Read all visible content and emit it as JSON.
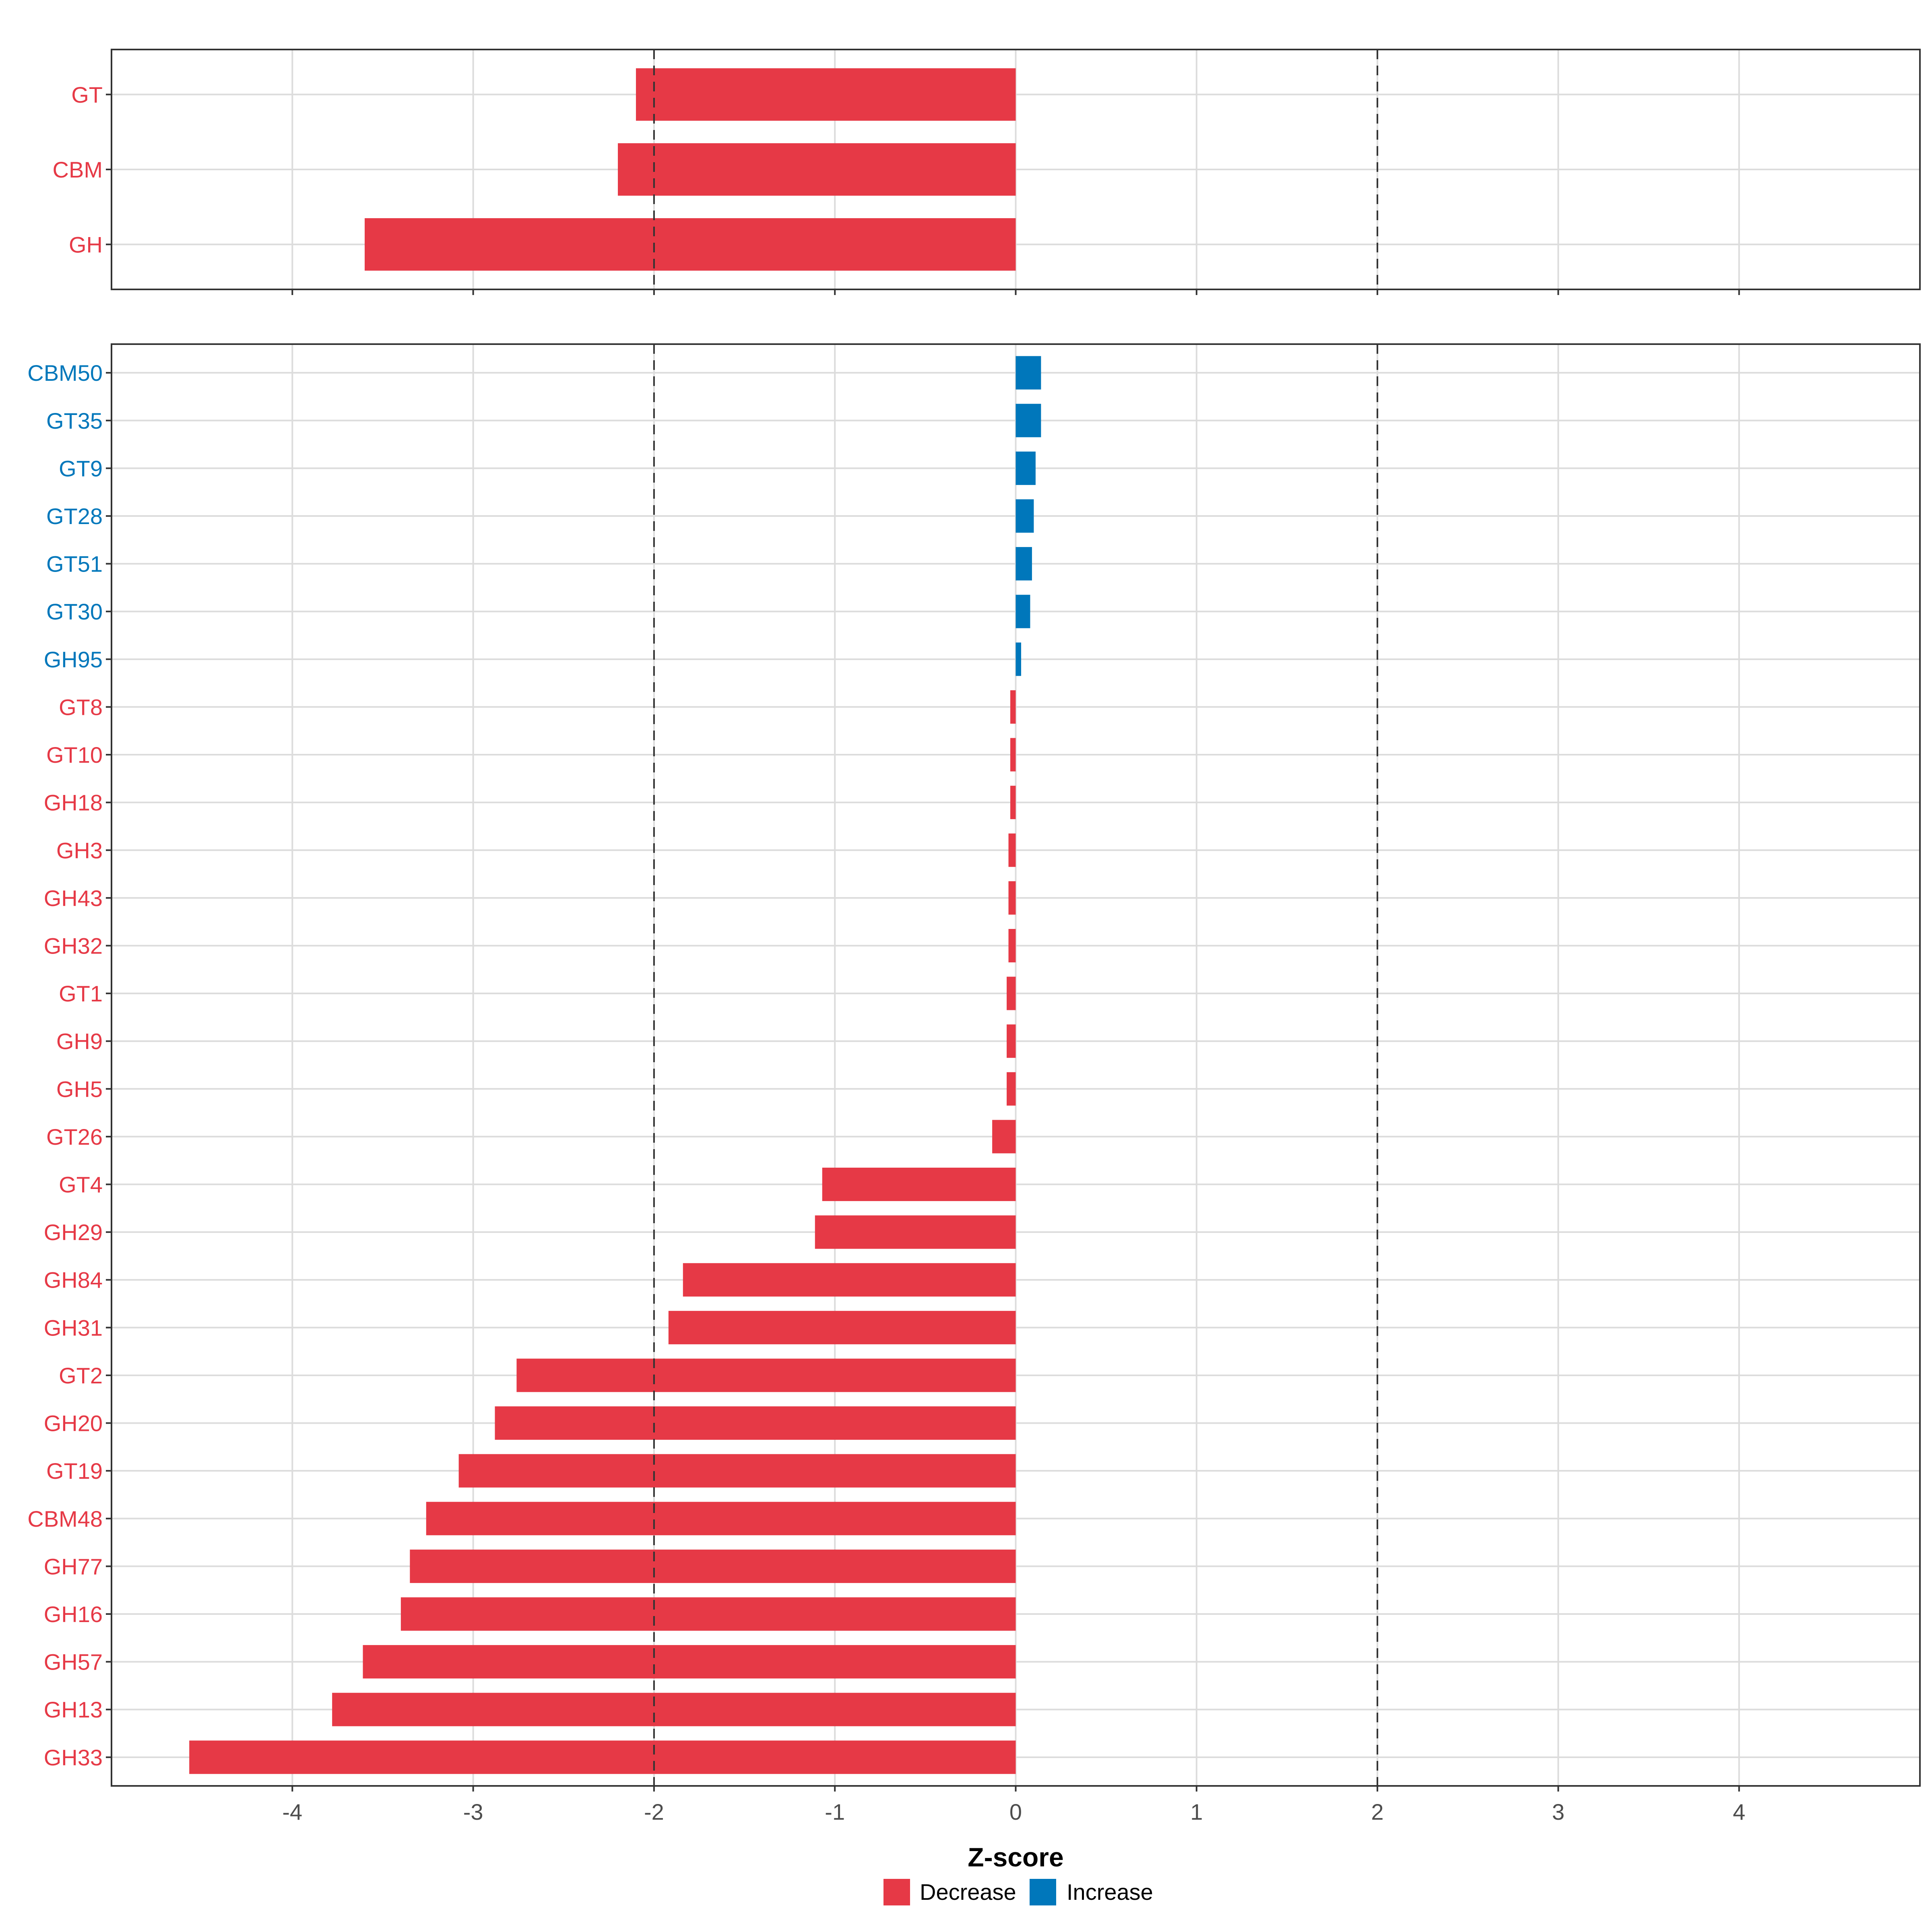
{
  "chart_data": {
    "type": "bar",
    "orientation": "horizontal",
    "xlabel": "Z-score",
    "xlim": [
      -5,
      5
    ],
    "xticks": [
      -4,
      -3,
      -2,
      -1,
      0,
      1,
      2,
      3,
      4
    ],
    "reference_lines": [
      -2,
      2
    ],
    "grid": true,
    "colors": {
      "Decrease": "#e63946",
      "Increase": "#0077bb"
    },
    "legend": {
      "position": "bottom",
      "entries": [
        "Decrease",
        "Increase"
      ]
    },
    "panels": [
      {
        "categories": [
          "GT",
          "CBM",
          "GH"
        ],
        "values": [
          -2.1,
          -2.2,
          -3.6
        ],
        "direction": [
          "Decrease",
          "Decrease",
          "Decrease"
        ]
      },
      {
        "categories": [
          "CBM50",
          "GT35",
          "GT9",
          "GT28",
          "GT51",
          "GT30",
          "GH95",
          "GT8",
          "GT10",
          "GH18",
          "GH3",
          "GH43",
          "GH32",
          "GT1",
          "GH9",
          "GH5",
          "GT26",
          "GT4",
          "GH29",
          "GH84",
          "GH31",
          "GT2",
          "GH20",
          "GT19",
          "CBM48",
          "GH77",
          "GH16",
          "GH57",
          "GH13",
          "GH33"
        ],
        "values": [
          0.14,
          0.14,
          0.11,
          0.1,
          0.09,
          0.08,
          0.03,
          -0.03,
          -0.03,
          -0.03,
          -0.04,
          -0.04,
          -0.04,
          -0.05,
          -0.05,
          -0.05,
          -0.13,
          -1.07,
          -1.11,
          -1.84,
          -1.92,
          -2.76,
          -2.88,
          -3.08,
          -3.26,
          -3.35,
          -3.4,
          -3.61,
          -3.78,
          -4.57
        ],
        "direction": [
          "Increase",
          "Increase",
          "Increase",
          "Increase",
          "Increase",
          "Increase",
          "Increase",
          "Decrease",
          "Decrease",
          "Decrease",
          "Decrease",
          "Decrease",
          "Decrease",
          "Decrease",
          "Decrease",
          "Decrease",
          "Decrease",
          "Decrease",
          "Decrease",
          "Decrease",
          "Decrease",
          "Decrease",
          "Decrease",
          "Decrease",
          "Decrease",
          "Decrease",
          "Decrease",
          "Decrease",
          "Decrease",
          "Decrease"
        ]
      }
    ]
  }
}
